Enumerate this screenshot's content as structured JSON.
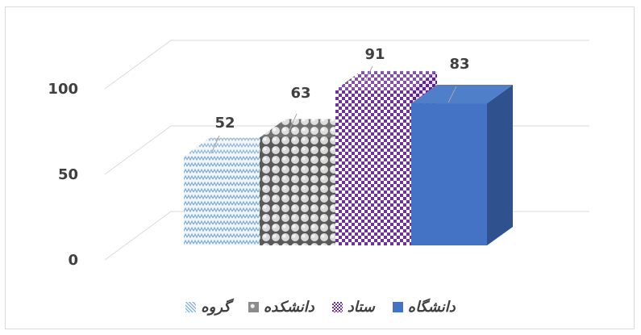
{
  "chart_data": {
    "type": "bar",
    "title": "",
    "xlabel": "",
    "ylabel": "",
    "ylim": [
      0,
      100
    ],
    "yticks": [
      0,
      50,
      100
    ],
    "grid": true,
    "legend_position": "bottom",
    "categories": [
      "گروه",
      "دانشکده",
      "ستاد",
      "دانشگاه"
    ],
    "values": [
      52,
      63,
      91,
      83
    ],
    "data_labels": [
      "52",
      "63",
      "91",
      "83"
    ],
    "colors": [
      "#bdd7ee",
      "#7f7f7f",
      "#7030a0",
      "#4472c4"
    ],
    "fill_patterns": [
      "zigzag",
      "spheres",
      "checker",
      "solid"
    ]
  }
}
